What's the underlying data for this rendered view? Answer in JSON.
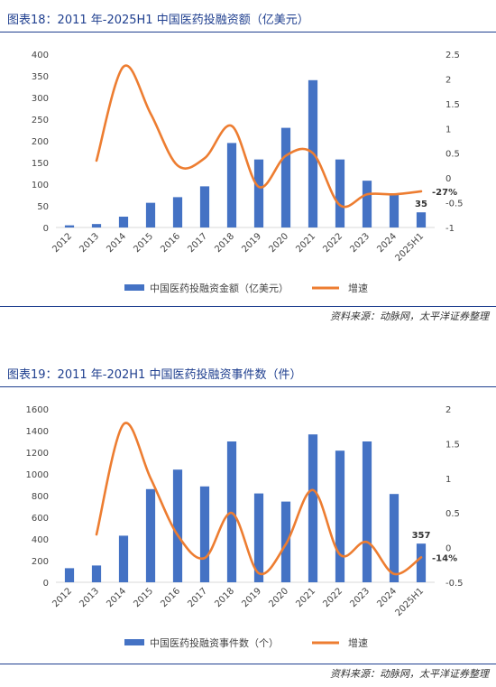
{
  "figures": [
    {
      "title": "图表18：2011 年-2025H1 中国医药投融资额（亿美元）",
      "source": "资料来源：动脉网，太平洋证券整理",
      "chart_data": {
        "type": "bar",
        "categories": [
          "2012",
          "2013",
          "2014",
          "2015",
          "2016",
          "2017",
          "2018",
          "2019",
          "2020",
          "2021",
          "2022",
          "2023",
          "2024",
          "2025H1"
        ],
        "ylim": [
          0,
          400
        ],
        "yticks": [
          "0",
          "50",
          "100",
          "150",
          "200",
          "250",
          "300",
          "350",
          "400"
        ],
        "y2lim": [
          -1,
          2.5
        ],
        "y2ticks": [
          "-1",
          "-0.5",
          "0",
          "0.5",
          "1",
          "1.5",
          "2",
          "2.5"
        ],
        "series": [
          {
            "name": "中国医药投融资金额（亿美元）",
            "kind": "bar",
            "color": "#4472C4",
            "values": [
              5,
              8,
              25,
              57,
              70,
              95,
              195,
              157,
              230,
              340,
              157,
              108,
              75,
              35
            ]
          },
          {
            "name": "增速",
            "kind": "line",
            "color": "#ED7D31",
            "values": [
              null,
              0.35,
              2.25,
              1.3,
              0.25,
              0.4,
              1.05,
              -0.18,
              0.45,
              0.5,
              -0.55,
              -0.33,
              -0.33,
              -0.27
            ]
          }
        ],
        "annotations": [
          "35",
          "-27%"
        ],
        "grid": false,
        "legend": "bottom"
      }
    },
    {
      "title": "图表19：2011 年-202H1 中国医药投融资事件数（件）",
      "source": "资料来源：动脉网，太平洋证券整理",
      "chart_data": {
        "type": "bar",
        "categories": [
          "2012",
          "2013",
          "2014",
          "2015",
          "2016",
          "2017",
          "2018",
          "2019",
          "2020",
          "2021",
          "2022",
          "2023",
          "2024",
          "2025H1"
        ],
        "ylim": [
          0,
          1600
        ],
        "yticks": [
          "0",
          "200",
          "400",
          "600",
          "800",
          "1000",
          "1200",
          "1400",
          "1600"
        ],
        "y2lim": [
          -0.5,
          2
        ],
        "y2ticks": [
          "-0.5",
          "0",
          "0.5",
          "1",
          "1.5",
          "2"
        ],
        "series": [
          {
            "name": "中国医药投融资事件数（个）",
            "kind": "bar",
            "color": "#4472C4",
            "values": [
              130,
              155,
              430,
              860,
              1040,
              885,
              1300,
              820,
              745,
              1365,
              1215,
              1300,
              815,
              357
            ]
          },
          {
            "name": "增速",
            "kind": "line",
            "color": "#ED7D31",
            "values": [
              null,
              0.19,
              1.78,
              1.0,
              0.18,
              -0.15,
              0.5,
              -0.37,
              0.05,
              0.83,
              -0.1,
              0.08,
              -0.38,
              -0.14
            ]
          }
        ],
        "annotations": [
          "357",
          "-14%"
        ],
        "grid": false,
        "legend": "bottom"
      }
    }
  ]
}
